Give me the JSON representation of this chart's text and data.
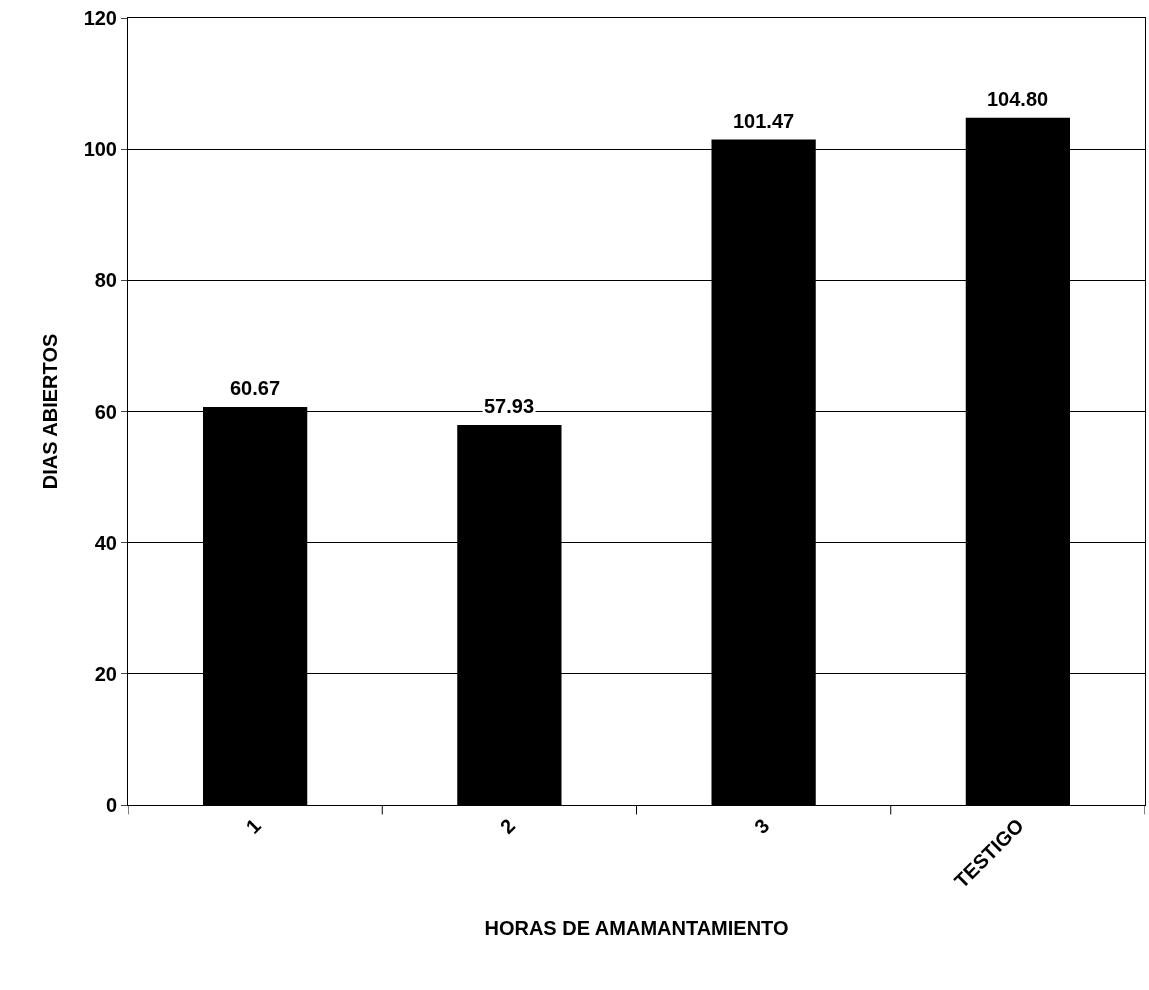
{
  "chart_data": {
    "type": "bar",
    "xlabel": "HORAS DE AMAMANTAMIENTO",
    "ylabel": "DIAS ABIERTOS",
    "categories": [
      "1",
      "2",
      "3",
      "TESTIGO"
    ],
    "values": [
      60.67,
      57.93,
      101.47,
      104.8
    ],
    "value_labels": [
      "60.67",
      "57.93",
      "101.47",
      "104.80"
    ],
    "color": "#000000",
    "ylim": [
      0,
      120
    ],
    "yticks": [
      0,
      20,
      40,
      60,
      80,
      100,
      120
    ],
    "grid": "y"
  }
}
